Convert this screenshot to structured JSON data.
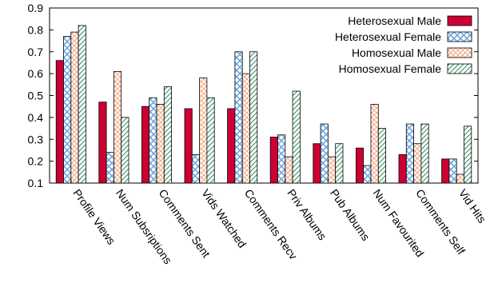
{
  "chart_data": {
    "type": "bar",
    "title": "",
    "xlabel": "",
    "ylabel": "",
    "ylim": [
      0.1,
      0.9
    ],
    "yticks": [
      "0.1",
      "0.2",
      "0.3",
      "0.4",
      "0.5",
      "0.6",
      "0.7",
      "0.8",
      "0.9"
    ],
    "grid": false,
    "legend_position": "top-right",
    "categories": [
      "Profile Views",
      "Num Subsriptions",
      "Comments Sent",
      "Vids Watched",
      "Comments Recv",
      "Priv Albums",
      "Pub Albums",
      "Num Favourited",
      "Comments Self",
      "Vid Hits"
    ],
    "series": [
      {
        "name": "Heterosexual Male",
        "color": "#cc0033",
        "pattern": "solid",
        "values": [
          0.66,
          0.47,
          0.45,
          0.44,
          0.44,
          0.31,
          0.28,
          0.26,
          0.23,
          0.21
        ]
      },
      {
        "name": "Heterosexual Female",
        "color": "#6fa8dc",
        "pattern": "crosshatch",
        "values": [
          0.77,
          0.24,
          0.49,
          0.23,
          0.7,
          0.32,
          0.37,
          0.18,
          0.37,
          0.21
        ]
      },
      {
        "name": "Homosexual Male",
        "color": "#f4a582",
        "pattern": "crosshatch",
        "values": [
          0.79,
          0.61,
          0.46,
          0.58,
          0.6,
          0.22,
          0.22,
          0.46,
          0.28,
          0.14
        ]
      },
      {
        "name": "Homosexual Female",
        "color": "#2e8b57",
        "pattern": "diagonal",
        "values": [
          0.82,
          0.4,
          0.54,
          0.49,
          0.7,
          0.52,
          0.28,
          0.35,
          0.37,
          0.36
        ]
      }
    ]
  }
}
